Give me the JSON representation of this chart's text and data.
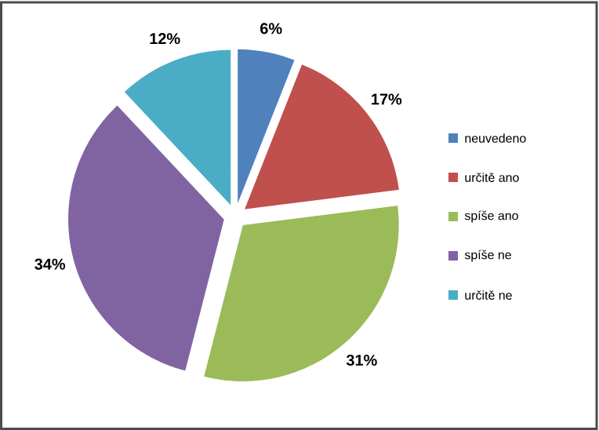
{
  "chart_data": {
    "type": "pie",
    "categories": [
      "neuvedeno",
      "určitě ano",
      "spíše ano",
      "spíše ne",
      "určitě ne"
    ],
    "values": [
      6,
      17,
      31,
      34,
      12
    ],
    "value_labels": [
      "6%",
      "17%",
      "31%",
      "34%",
      "12%"
    ],
    "colors": [
      "#4f81bd",
      "#c0504d",
      "#9bbb59",
      "#8064a2",
      "#4bacc6"
    ],
    "legend": "right"
  }
}
